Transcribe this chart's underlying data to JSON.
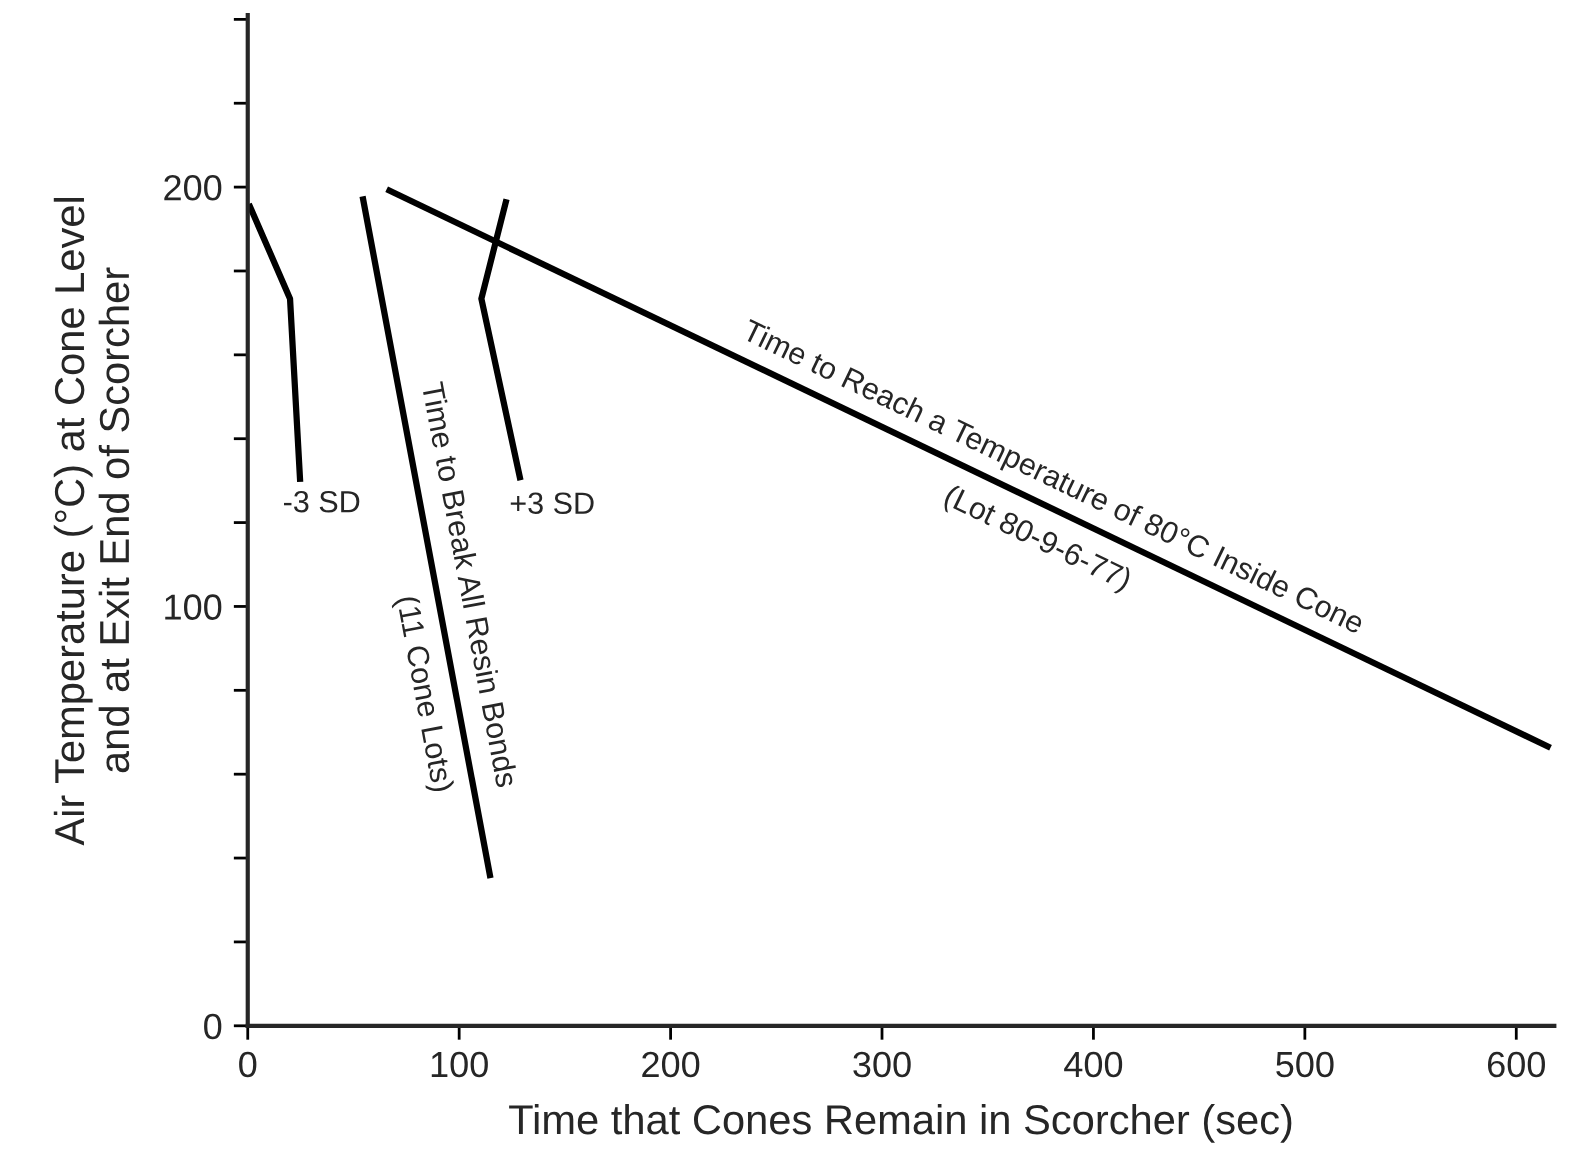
{
  "chart_data": {
    "type": "line",
    "xlabel": "Time that Cones Remain in Scorcher (sec)",
    "ylabel": "Air Temperature (°C) at Cone Level\nand at Exit End of Scorcher",
    "xlim": [
      0,
      618
    ],
    "ylim": [
      0,
      241
    ],
    "xticks": [
      0,
      100,
      200,
      300,
      400,
      500,
      600
    ],
    "yticks": [
      0,
      {
        "value": 20,
        "label": null
      },
      {
        "value": 40,
        "label": null
      },
      {
        "value": 60,
        "label": null
      },
      {
        "value": 80,
        "label": null
      },
      100,
      {
        "value": 120,
        "label": null
      },
      {
        "value": 140,
        "label": null
      },
      {
        "value": 160,
        "label": null
      },
      {
        "value": 180,
        "label": null
      },
      200,
      {
        "value": 220,
        "label": null
      },
      {
        "value": 240,
        "label": null
      }
    ],
    "series": [
      {
        "color": "#000000",
        "x": [
          0.5,
          20,
          24.8
        ],
        "values": [
          196,
          173.4,
          129.7
        ]
      },
      {
        "color": "#000000",
        "x": [
          54.3,
          114.8
        ],
        "values": [
          197.8,
          35.2
        ]
      },
      {
        "color": "#000000",
        "x": [
          122.4,
          110.5,
          129
        ],
        "values": [
          197.1,
          173.4,
          130.1
        ]
      },
      {
        "color": "#000000",
        "x": [
          65.7,
          616.2
        ],
        "values": [
          199.5,
          66.3
        ]
      }
    ],
    "annotations": [
      "-3 SD",
      "+3 SD",
      "Time to Break All Resin Bonds",
      "(11 Cone Lots)",
      "Time to Reach a Temperature of 80°C Inside Cone",
      "(Lot 80-9-6-77)"
    ],
    "line_style": "solid",
    "marker": "none"
  }
}
